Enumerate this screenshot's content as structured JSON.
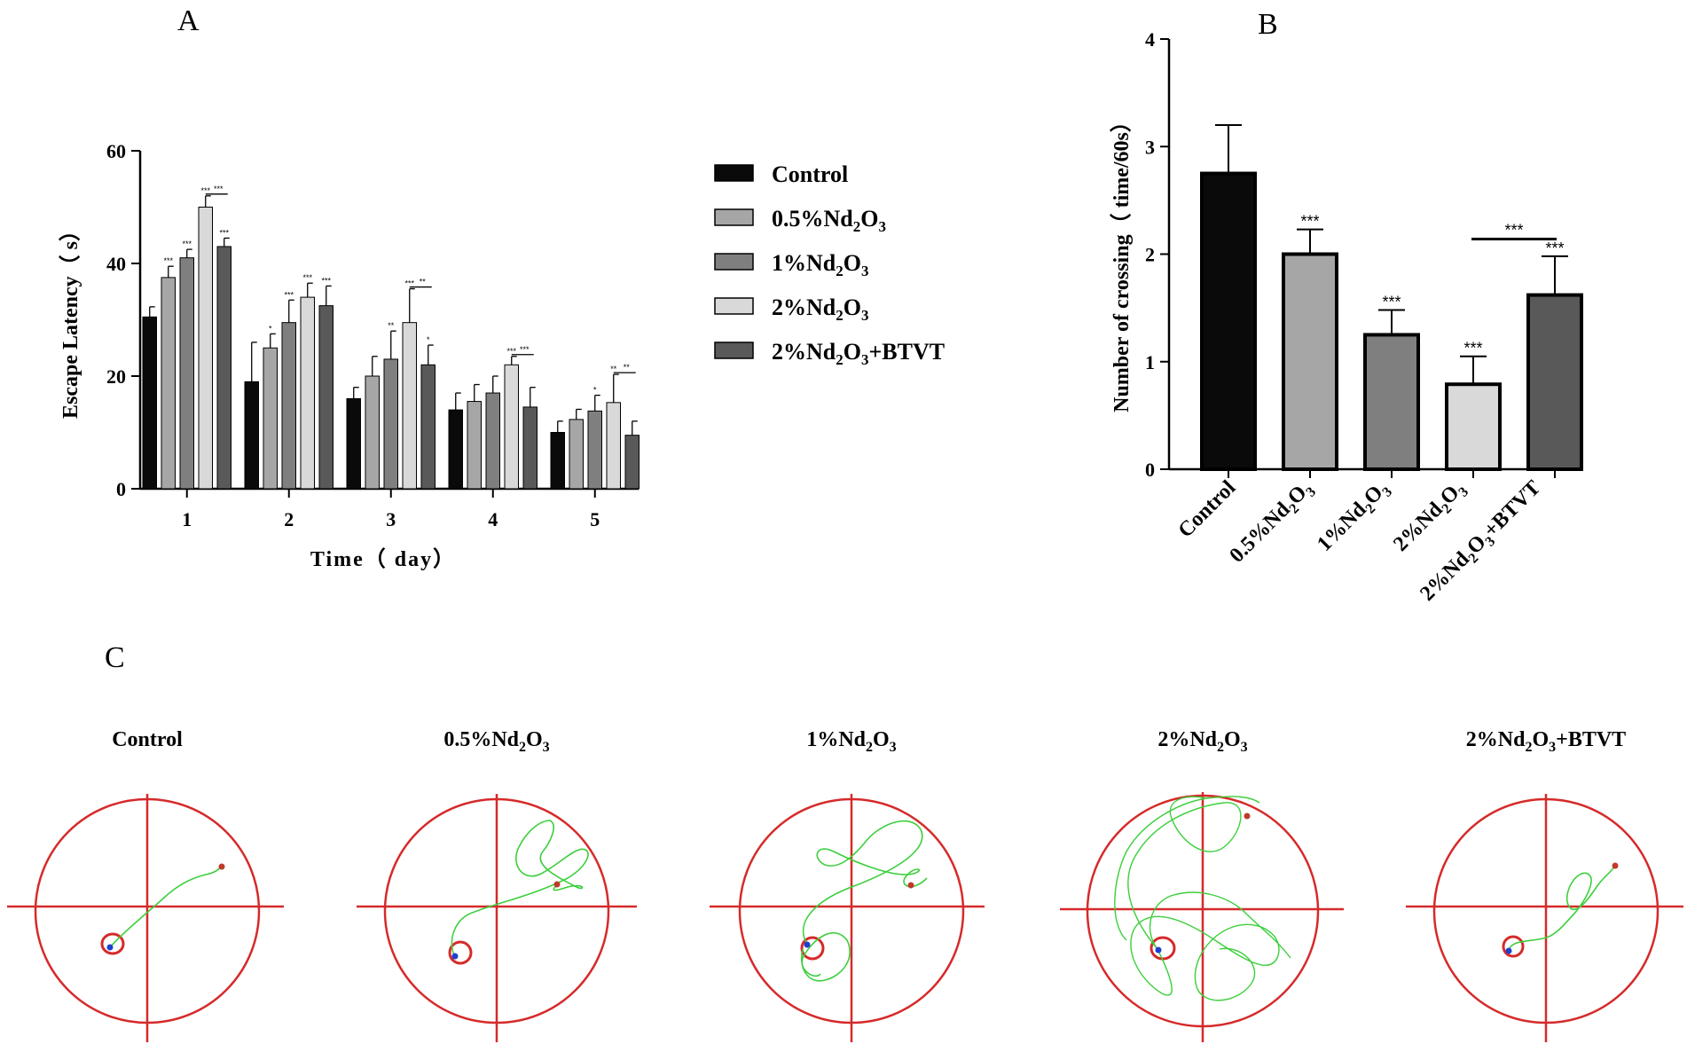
{
  "panels": {
    "a": "A",
    "b": "B",
    "c": "C"
  },
  "colors": {
    "control": "#0a0a0a",
    "nd05": "#a6a6a6",
    "nd1": "#7f7f7f",
    "nd2": "#d9d9d9",
    "nd2btvt": "#595959",
    "arena": "#d62a2a",
    "path": "#3ccf3c",
    "start": "#c0392b",
    "end": "#1f3fcf"
  },
  "chart_data": [
    {
      "type": "bar",
      "title": "A",
      "xlabel": "Time（ day）",
      "ylabel": "Escape Latency（ s）",
      "ylim": [
        0,
        60
      ],
      "yticks": [
        0,
        20,
        40,
        60
      ],
      "categories": [
        "1",
        "2",
        "3",
        "4",
        "5"
      ],
      "series": [
        {
          "name": "Control",
          "values": [
            30.5,
            19.0,
            16.0,
            14.0,
            10.0
          ],
          "errors": [
            1.8,
            7.0,
            2.0,
            3.0,
            2.0
          ],
          "sig": [
            "",
            "",
            "",
            "",
            ""
          ]
        },
        {
          "name": "0.5%Nd2O3",
          "values": [
            37.5,
            25.0,
            20.0,
            15.5,
            12.3
          ],
          "errors": [
            2.0,
            2.5,
            3.5,
            3.0,
            1.8
          ],
          "sig": [
            "***",
            "*",
            "",
            "",
            ""
          ]
        },
        {
          "name": "1%Nd2O3",
          "values": [
            41.0,
            29.5,
            23.0,
            17.0,
            13.8
          ],
          "errors": [
            1.5,
            4.0,
            5.0,
            3.0,
            2.8
          ],
          "sig": [
            "***",
            "***",
            "**",
            "",
            "*"
          ]
        },
        {
          "name": "2%Nd2O3",
          "values": [
            50.0,
            34.0,
            29.5,
            22.0,
            15.3
          ],
          "errors": [
            2.0,
            2.5,
            6.0,
            1.5,
            5.0
          ],
          "sig": [
            "***",
            "***",
            "***",
            "***",
            "**"
          ]
        },
        {
          "name": "2%Nd2O3+BTVT",
          "values": [
            43.0,
            32.5,
            22.0,
            14.5,
            9.5
          ],
          "errors": [
            1.5,
            3.5,
            3.5,
            3.5,
            2.5
          ],
          "sig": [
            "***",
            "***",
            "*",
            "",
            ""
          ]
        }
      ],
      "brackets": [
        {
          "day": "1",
          "label": "***"
        },
        {
          "day": "3",
          "label": "**"
        },
        {
          "day": "4",
          "label": "***"
        },
        {
          "day": "5",
          "label": "**"
        }
      ],
      "legend": [
        "Control",
        "0.5%Nd2O3",
        "1%Nd2O3",
        "2%Nd2O3",
        "2%Nd2O3+BTVT"
      ],
      "legend_position": "right"
    },
    {
      "type": "bar",
      "title": "B",
      "xlabel": "",
      "ylabel": "Number of crossing（ time/60s）",
      "ylim": [
        0,
        4
      ],
      "yticks": [
        0,
        1,
        2,
        3,
        4
      ],
      "categories": [
        "Control",
        "0.5%Nd2O3",
        "1%Nd2O3",
        "2%Nd2O3",
        "2%Nd2O3+BTVT"
      ],
      "values": [
        2.75,
        2.0,
        1.25,
        0.79,
        1.62
      ],
      "errors": [
        0.45,
        0.23,
        0.23,
        0.26,
        0.36
      ],
      "sig": [
        "",
        "***",
        "***",
        "***",
        "***"
      ],
      "bracket": {
        "from": "2%Nd2O3",
        "to": "2%Nd2O3+BTVT",
        "label": "***"
      }
    }
  ],
  "tracks": {
    "titles": [
      "Control",
      "0.5%Nd2O3",
      "1%Nd2O3",
      "2%Nd2O3",
      "2%Nd2O3+BTVT"
    ]
  }
}
